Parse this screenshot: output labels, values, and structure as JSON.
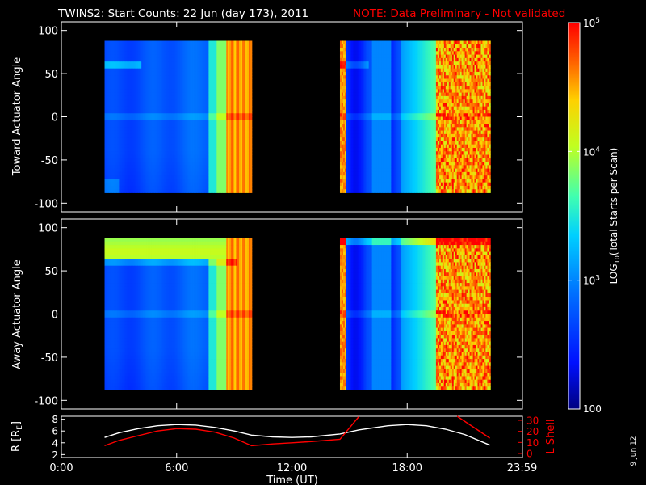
{
  "title": "TWINS2: Start Counts: 22 Jun (day 173), 2011",
  "note": "NOTE: Data Preliminary - Not validated",
  "stamp": "9 Jun 12",
  "chart_data": [
    {
      "type": "heatmap",
      "name": "toward",
      "ylabel": "Toward Actuator Angle",
      "ylim": [
        -110,
        110
      ],
      "yticks": [
        "100",
        "50",
        "0",
        "-50",
        "-100"
      ],
      "ytick_values": [
        100,
        50,
        0,
        -50,
        -100
      ],
      "data_y_range": [
        -88,
        88
      ],
      "data_intervals_utc": [
        [
          "02:15",
          "09:55"
        ],
        [
          "14:30",
          "22:20"
        ]
      ],
      "features": [
        {
          "utc": "02:15-04:15",
          "angle": 60,
          "level": "~10^3"
        },
        {
          "utc": "08:10-09:55",
          "level": "~10^4.5"
        },
        {
          "utc": "19:30-22:20",
          "level": "10^4-10^5 (striated)"
        }
      ],
      "color_scale": "log",
      "cbar_range": [
        100,
        100000
      ]
    },
    {
      "type": "heatmap",
      "name": "away",
      "ylabel": "Away Actuator Angle",
      "ylim": [
        -110,
        110
      ],
      "yticks": [
        "100",
        "50",
        "0",
        "-50",
        "-100"
      ],
      "ytick_values": [
        100,
        50,
        0,
        -50,
        -100
      ],
      "data_y_range": [
        -88,
        88
      ],
      "data_intervals_utc": [
        [
          "02:15",
          "09:55"
        ],
        [
          "14:30",
          "22:20"
        ]
      ],
      "features": [
        {
          "utc": "02:15-09:10",
          "angle": 70,
          "level": "~10^4"
        },
        {
          "utc": "09:10-09:55",
          "level": "~10^4.7"
        },
        {
          "utc": "19:30-22:20",
          "level": "10^4-10^5 (striated)"
        }
      ],
      "color_scale": "log",
      "cbar_range": [
        100,
        100000
      ]
    },
    {
      "type": "line",
      "name": "orbit",
      "ylabel": "R [R",
      "ylabel_sub": "E",
      "ylabel_end": "]",
      "ylim": [
        1.5,
        8.5
      ],
      "yticks": [
        "8",
        "6",
        "4",
        "2"
      ],
      "ytick_values": [
        8,
        6,
        4,
        2
      ],
      "y2label": "L Shell",
      "y2lim": [
        0,
        30
      ],
      "y2ticks": [
        "30",
        "20",
        "10",
        "0"
      ],
      "y2tick_values": [
        30,
        20,
        10,
        0
      ],
      "series": [
        {
          "color": "#ffffff",
          "x": [
            2.25,
            3,
            4,
            5,
            6,
            7,
            8,
            9,
            9.9,
            11,
            12,
            13,
            14.5,
            15.5,
            17,
            18,
            19,
            20,
            21,
            22.3
          ],
          "y": [
            4.9,
            5.7,
            6.4,
            6.9,
            7.1,
            7.0,
            6.6,
            6.0,
            5.3,
            5.0,
            4.9,
            5.0,
            5.5,
            6.2,
            6.9,
            7.1,
            6.9,
            6.3,
            5.4,
            3.6
          ]
        },
        {
          "color": "#ff0000",
          "x": [
            2.25,
            3,
            4,
            5,
            6,
            7,
            8,
            9,
            9.9,
            11,
            12,
            13,
            14.5,
            15.5
          ],
          "y": [
            3.5,
            4.4,
            5.2,
            6.0,
            6.4,
            6.3,
            5.8,
            4.8,
            3.5,
            3.8,
            4.0,
            4.2,
            4.6,
            8.5
          ]
        },
        {
          "color": "#ff0000",
          "x": [
            20.6,
            22.3
          ],
          "y": [
            8.5,
            4.8
          ]
        }
      ]
    }
  ],
  "xaxis": {
    "xlabel": "Time (UT)",
    "xlim": [
      0,
      24
    ],
    "ticks": [
      {
        "label": "0:00",
        "value": 0
      },
      {
        "label": "6:00",
        "value": 6
      },
      {
        "label": "12:00",
        "value": 12
      },
      {
        "label": "18:00",
        "value": 18
      },
      {
        "label": "23:59",
        "value": 23.98
      }
    ]
  },
  "colorbar": {
    "label": "LOG",
    "label_sub": "10",
    "label_end": "(Total Starts per Scan)",
    "ticks": [
      {
        "base": "10",
        "exp": "5",
        "value": 5
      },
      {
        "base": "10",
        "exp": "4",
        "value": 4
      },
      {
        "base": "10",
        "exp": "3",
        "value": 3
      },
      {
        "base": "100",
        "exp": "",
        "value": 2
      }
    ]
  }
}
